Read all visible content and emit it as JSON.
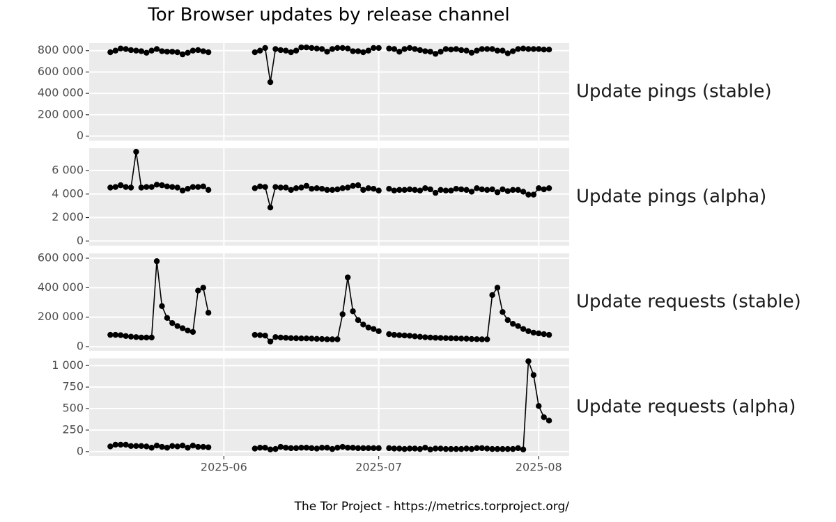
{
  "chart_data": {
    "type": "line",
    "title": "Tor Browser updates by release channel",
    "caption": "The Tor Project - https://metrics.torproject.org/",
    "x": [
      129,
      130,
      131,
      132,
      133,
      134,
      135,
      136,
      137,
      138,
      139,
      140,
      141,
      142,
      143,
      144,
      145,
      146,
      147,
      148,
      149,
      157,
      158,
      159,
      160,
      161,
      162,
      163,
      164,
      165,
      166,
      167,
      168,
      169,
      170,
      171,
      172,
      173,
      174,
      175,
      176,
      177,
      178,
      179,
      180,
      181,
      182,
      183,
      184,
      185,
      186,
      187,
      188,
      189,
      190,
      191,
      192,
      193,
      194,
      195,
      196,
      197,
      198,
      199,
      200,
      201,
      202,
      203,
      204,
      205,
      206,
      207,
      208,
      209,
      210,
      211,
      212,
      213,
      214
    ],
    "xlim": [
      124.9,
      217.9
    ],
    "xticks": [
      {
        "value": 151,
        "label": "2025-06"
      },
      {
        "value": 181,
        "label": "2025-07"
      },
      {
        "value": 212,
        "label": "2025-08"
      }
    ],
    "grid": true,
    "series": [
      {
        "name": "Update pings (stable)",
        "color": "#000000",
        "ylim": [
          -42000,
          870000
        ],
        "yticks": [
          0,
          {
            "value": 200000,
            "label": "200 000"
          },
          {
            "value": 400000,
            "label": "400 000"
          },
          {
            "value": 600000,
            "label": "600 000"
          },
          {
            "value": 800000,
            "label": "800 000"
          }
        ],
        "values": [
          785000,
          800000,
          820000,
          815000,
          805000,
          800000,
          795000,
          780000,
          800000,
          815000,
          795000,
          790000,
          790000,
          785000,
          765000,
          780000,
          800000,
          805000,
          795000,
          785000,
          null,
          785000,
          800000,
          825000,
          505000,
          815000,
          805000,
          800000,
          785000,
          800000,
          830000,
          830000,
          825000,
          820000,
          815000,
          790000,
          815000,
          825000,
          825000,
          820000,
          795000,
          795000,
          785000,
          800000,
          825000,
          825000,
          null,
          820000,
          815000,
          790000,
          815000,
          825000,
          815000,
          805000,
          795000,
          790000,
          770000,
          790000,
          815000,
          810000,
          815000,
          805000,
          800000,
          780000,
          800000,
          815000,
          815000,
          815000,
          800000,
          800000,
          775000,
          795000,
          815000,
          820000,
          815000,
          815000,
          815000,
          810000,
          810000
        ]
      },
      {
        "name": "Update pings (alpha)",
        "color": "#000000",
        "ylim": [
          -400,
          7900
        ],
        "yticks": [
          0,
          {
            "value": 2000,
            "label": "2 000"
          },
          {
            "value": 4000,
            "label": "4 000"
          },
          {
            "value": 6000,
            "label": "6 000"
          }
        ],
        "values": [
          4550,
          4600,
          4750,
          4600,
          4550,
          7600,
          4550,
          4600,
          4600,
          4800,
          4750,
          4650,
          4600,
          4550,
          4300,
          4450,
          4600,
          4600,
          4650,
          4350,
          null,
          4500,
          4650,
          4600,
          2850,
          4600,
          4550,
          4550,
          4350,
          4500,
          4550,
          4700,
          4450,
          4500,
          4450,
          4350,
          4350,
          4400,
          4500,
          4550,
          4700,
          4750,
          4350,
          4500,
          4450,
          4300,
          null,
          4450,
          4300,
          4350,
          4350,
          4400,
          4350,
          4300,
          4500,
          4400,
          4100,
          4350,
          4300,
          4300,
          4450,
          4400,
          4350,
          4200,
          4500,
          4400,
          4350,
          4400,
          4150,
          4400,
          4250,
          4350,
          4350,
          4200,
          3950,
          3950,
          4500,
          4400,
          4500
        ]
      },
      {
        "name": "Update requests (stable)",
        "color": "#000000",
        "ylim": [
          -28000,
          633000
        ],
        "yticks": [
          0,
          {
            "value": 200000,
            "label": "200 000"
          },
          {
            "value": 400000,
            "label": "400 000"
          },
          {
            "value": 600000,
            "label": "600 000"
          }
        ],
        "values": [
          80000,
          80000,
          78000,
          72000,
          68000,
          65000,
          62000,
          62000,
          62000,
          580000,
          275000,
          195000,
          160000,
          140000,
          125000,
          110000,
          100000,
          380000,
          400000,
          230000,
          null,
          80000,
          78000,
          75000,
          35000,
          65000,
          62000,
          60000,
          58000,
          57000,
          56000,
          56000,
          55000,
          53000,
          52000,
          50000,
          50000,
          50000,
          220000,
          470000,
          240000,
          180000,
          150000,
          130000,
          120000,
          105000,
          null,
          85000,
          80000,
          78000,
          76000,
          74000,
          70000,
          67000,
          64000,
          62000,
          60000,
          59000,
          58000,
          57000,
          56000,
          55000,
          54000,
          52000,
          51000,
          50000,
          50000,
          350000,
          400000,
          235000,
          180000,
          155000,
          140000,
          120000,
          105000,
          95000,
          90000,
          85000,
          80000
        ]
      },
      {
        "name": "Update requests (alpha)",
        "color": "#000000",
        "ylim": [
          -50,
          1083
        ],
        "yticks": [
          0,
          250,
          500,
          750,
          {
            "value": 1000,
            "label": "1 000"
          }
        ],
        "values": [
          60,
          80,
          80,
          80,
          65,
          65,
          65,
          60,
          45,
          70,
          55,
          45,
          65,
          60,
          70,
          45,
          70,
          55,
          55,
          50,
          null,
          35,
          45,
          45,
          25,
          30,
          55,
          45,
          40,
          40,
          45,
          45,
          40,
          35,
          45,
          45,
          30,
          45,
          55,
          45,
          45,
          40,
          40,
          40,
          40,
          40,
          null,
          40,
          35,
          35,
          30,
          35,
          35,
          30,
          45,
          25,
          35,
          35,
          30,
          30,
          30,
          30,
          35,
          30,
          40,
          40,
          35,
          30,
          30,
          30,
          30,
          30,
          40,
          25,
          1050,
          890,
          530,
          400,
          360
        ]
      }
    ]
  }
}
